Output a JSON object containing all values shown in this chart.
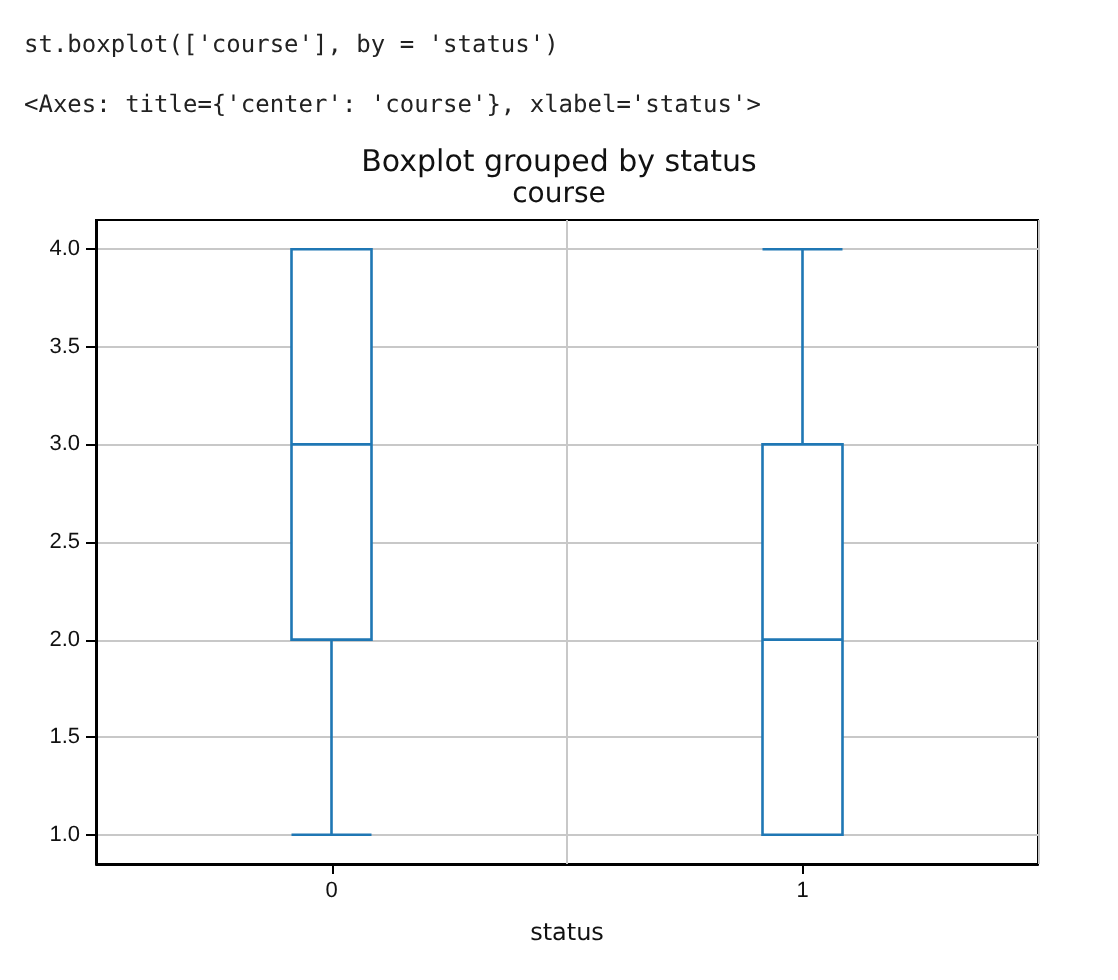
{
  "chart_data": {
    "type": "box",
    "title": "Boxplot grouped by status",
    "subtitle": "course",
    "xlabel": "status",
    "categories": [
      "0",
      "1"
    ],
    "series": [
      {
        "color": "#1f77b4",
        "boxes": [
          {
            "low": 1,
            "q1": 2,
            "median": 3,
            "q3": 4,
            "high": 4
          },
          {
            "low": 1,
            "q1": 1,
            "median": 2,
            "q3": 3,
            "high": 4
          }
        ]
      }
    ],
    "ylim": [
      0.85,
      4.15
    ],
    "yticks": [
      {
        "value": 1,
        "label": "1.0"
      },
      {
        "value": 1.5,
        "label": "1.5"
      },
      {
        "value": 2,
        "label": "2.0"
      },
      {
        "value": 2.5,
        "label": "2.5"
      },
      {
        "value": 3,
        "label": "3.0"
      },
      {
        "value": 3.5,
        "label": "3.5"
      },
      {
        "value": 4,
        "label": "4.0"
      }
    ],
    "grid": true,
    "annotations": [
      "st.boxplot(['course'], by = 'status')",
      "<Axes: title={'center': 'course'}, xlabel='status'>"
    ]
  }
}
